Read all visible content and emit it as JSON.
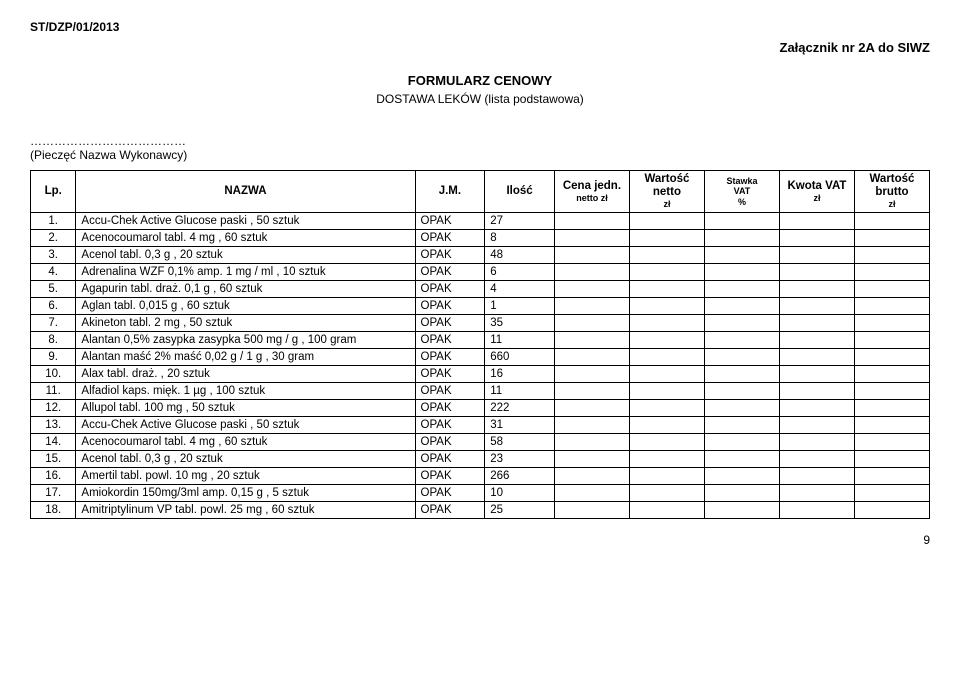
{
  "doc_id": "ST/DZP/01/2013",
  "attachment": "Załącznik nr 2A do SIWZ",
  "title": "FORMULARZ CENOWY",
  "subtitle": "DOSTAWA LEKÓW (lista podstawowa)",
  "dots": "…………………………………",
  "stamp": "(Pieczęć Nazwa Wykonawcy)",
  "page_num": "9",
  "headers": {
    "lp": "Lp.",
    "nazwa": "NAZWA",
    "jm": "J.M.",
    "ilosc": "Ilość",
    "cena1": "Cena",
    "cena2": "jedn.",
    "cena3": "netto zł",
    "wn1": "Wartość",
    "wn2": "netto",
    "wn3": "zł",
    "sv1": "Stawka",
    "sv2": "VAT",
    "sv3": "%",
    "kv1": "Kwota",
    "kv2": "VAT",
    "kv3": "zł",
    "wb1": "Wartość",
    "wb2": "brutto",
    "wb3": "zł"
  },
  "rows": [
    {
      "lp": "1.",
      "name": "Accu-Chek Active Glucose paski ,  50 sztuk",
      "jm": "OPAK",
      "qty": "27"
    },
    {
      "lp": "2.",
      "name": "Acenocoumarol tabl.  4  mg ,  60 sztuk",
      "jm": "OPAK",
      "qty": "8"
    },
    {
      "lp": "3.",
      "name": "Acenol tabl.  0,3  g ,  20 sztuk",
      "jm": "OPAK",
      "qty": "48"
    },
    {
      "lp": "4.",
      "name": "Adrenalina WZF 0,1% amp.  1  mg / ml ,  10 sztuk",
      "jm": "OPAK",
      "qty": "6"
    },
    {
      "lp": "5.",
      "name": "Agapurin tabl. draż.  0,1  g ,  60 sztuk",
      "jm": "OPAK",
      "qty": "4"
    },
    {
      "lp": "6.",
      "name": "Aglan tabl.  0,015  g ,  60 sztuk",
      "jm": "OPAK",
      "qty": "1"
    },
    {
      "lp": "7.",
      "name": "Akineton tabl.  2  mg ,  50 sztuk",
      "jm": "OPAK",
      "qty": "35"
    },
    {
      "lp": "8.",
      "name": "Alantan 0,5% zasypka zasypka  500  mg / g ,  100 gram",
      "jm": "OPAK",
      "qty": "11"
    },
    {
      "lp": "9.",
      "name": "Alantan maść 2% maść  0,02  g / 1 g ,  30 gram",
      "jm": "OPAK",
      "qty": "660"
    },
    {
      "lp": "10.",
      "name": "Alax tabl. draż.  ,  20 sztuk",
      "jm": "OPAK",
      "qty": "16"
    },
    {
      "lp": "11.",
      "name": "Alfadiol kaps. mięk.  1  µg ,  100 sztuk",
      "jm": "OPAK",
      "qty": "11"
    },
    {
      "lp": "12.",
      "name": "Allupol tabl.  100  mg ,  50 sztuk",
      "jm": "OPAK",
      "qty": "222"
    },
    {
      "lp": "13.",
      "name": "Accu-Chek Active Glucose paski ,  50 sztuk",
      "jm": "OPAK",
      "qty": "31"
    },
    {
      "lp": "14.",
      "name": "Acenocoumarol tabl.  4  mg ,  60 sztuk",
      "jm": "OPAK",
      "qty": "58"
    },
    {
      "lp": "15.",
      "name": "Acenol tabl.  0,3  g ,  20 sztuk",
      "jm": "OPAK",
      "qty": "23"
    },
    {
      "lp": "16.",
      "name": "Amertil tabl. powl.  10  mg ,  20 sztuk",
      "jm": "OPAK",
      "qty": "266"
    },
    {
      "lp": "17.",
      "name": "Amiokordin 150mg/3ml amp.  0,15  g ,  5 sztuk",
      "jm": "OPAK",
      "qty": "10"
    },
    {
      "lp": "18.",
      "name": "Amitriptylinum VP tabl. powl.  25  mg ,  60 sztuk",
      "jm": "OPAK",
      "qty": "25"
    }
  ]
}
